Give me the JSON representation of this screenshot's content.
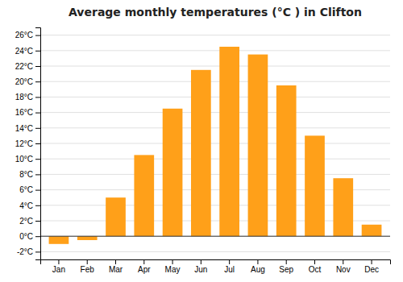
{
  "chart_data": {
    "type": "bar",
    "title": "Average monthly temperatures (°C ) in Clifton",
    "categories": [
      "Jan",
      "Feb",
      "Mar",
      "Apr",
      "May",
      "Jun",
      "Jul",
      "Aug",
      "Sep",
      "Oct",
      "Nov",
      "Dec"
    ],
    "values": [
      -1.0,
      -0.5,
      5.0,
      10.5,
      16.5,
      21.5,
      24.5,
      23.5,
      19.5,
      13.0,
      7.5,
      1.5
    ],
    "color": "#FFA019",
    "ylim": [
      -3,
      27
    ],
    "yticks": [
      {
        "value": -2,
        "label": "-2°C"
      },
      {
        "value": 0,
        "label": "0°C"
      },
      {
        "value": 2,
        "label": "2°C"
      },
      {
        "value": 4,
        "label": "4°C"
      },
      {
        "value": 6,
        "label": "6°C"
      },
      {
        "value": 8,
        "label": "8°C"
      },
      {
        "value": 10,
        "label": "10°C"
      },
      {
        "value": 12,
        "label": "12°C"
      },
      {
        "value": 14,
        "label": "14°C"
      },
      {
        "value": 16,
        "label": "16°C"
      },
      {
        "value": 18,
        "label": "18°C"
      },
      {
        "value": 20,
        "label": "20°C"
      },
      {
        "value": 22,
        "label": "22°C"
      },
      {
        "value": 24,
        "label": "24°C"
      },
      {
        "value": 26,
        "label": "26°C"
      }
    ],
    "grid": true
  }
}
